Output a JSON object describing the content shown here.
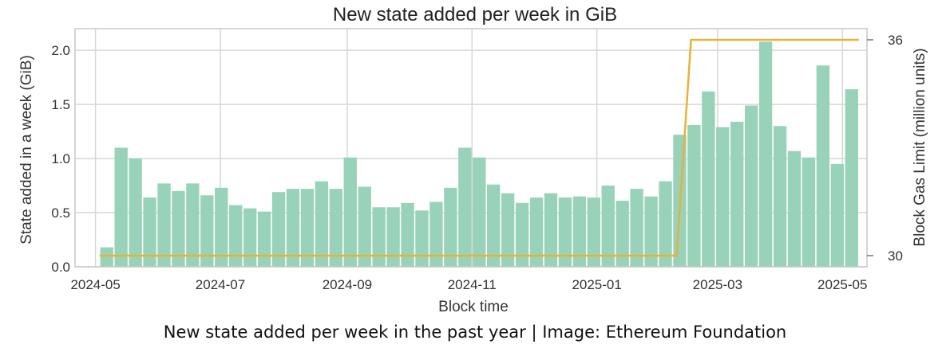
{
  "caption": "New state added per week in the past year | Image: Ethereum Foundation",
  "colors": {
    "bars": "#98d2b9",
    "gas_line": "#e8b23a",
    "grid": "#d7d7d7",
    "frame": "#c8c8c8"
  },
  "chart_data": {
    "type": "bar",
    "title": "New state added per week in GiB",
    "xlabel": "Block time",
    "ylabel": "State added in a week (GiB)",
    "y2label": "Block Gas Limit (million units)",
    "ylim": [
      0,
      2.2
    ],
    "yticks": [
      0.0,
      0.5,
      1.0,
      1.5,
      2.0
    ],
    "ytick_labels": [
      "0.0",
      "0.5",
      "1.0",
      "1.5",
      "2.0"
    ],
    "y2ticks": [
      30,
      36
    ],
    "y2tick_labels": [
      "30",
      "36"
    ],
    "xlim": [
      "2024-04-21",
      "2025-05-13"
    ],
    "xticks": [
      "2024-05-01",
      "2024-07-01",
      "2024-09-01",
      "2024-11-01",
      "2025-01-01",
      "2025-03-01",
      "2025-05-01"
    ],
    "xtick_labels": [
      "2024-05",
      "2024-07",
      "2024-09",
      "2024-11",
      "2025-01",
      "2025-03",
      "2025-05"
    ],
    "grid": true,
    "bar_series": {
      "name": "State added per week",
      "week_start": [
        "2024-05-03",
        "2024-05-10",
        "2024-05-17",
        "2024-05-24",
        "2024-05-31",
        "2024-06-07",
        "2024-06-14",
        "2024-06-21",
        "2024-06-28",
        "2024-07-05",
        "2024-07-12",
        "2024-07-19",
        "2024-07-26",
        "2024-08-02",
        "2024-08-09",
        "2024-08-16",
        "2024-08-23",
        "2024-08-30",
        "2024-09-06",
        "2024-09-13",
        "2024-09-20",
        "2024-09-27",
        "2024-10-04",
        "2024-10-11",
        "2024-10-18",
        "2024-10-25",
        "2024-11-01",
        "2024-11-08",
        "2024-11-15",
        "2024-11-22",
        "2024-11-29",
        "2024-12-06",
        "2024-12-13",
        "2024-12-20",
        "2024-12-27",
        "2025-01-03",
        "2025-01-10",
        "2025-01-17",
        "2025-01-24",
        "2025-01-31",
        "2025-02-07",
        "2025-02-14",
        "2025-02-21",
        "2025-02-28",
        "2025-03-07",
        "2025-03-14",
        "2025-03-21",
        "2025-03-28",
        "2025-04-04",
        "2025-04-11",
        "2025-04-18",
        "2025-04-25",
        "2025-05-02"
      ],
      "values": [
        0.18,
        1.1,
        1.0,
        0.64,
        0.77,
        0.7,
        0.77,
        0.66,
        0.73,
        0.57,
        0.54,
        0.51,
        0.69,
        0.72,
        0.72,
        0.79,
        0.72,
        1.01,
        0.74,
        0.55,
        0.55,
        0.59,
        0.52,
        0.6,
        0.73,
        1.1,
        1.01,
        0.76,
        0.68,
        0.59,
        0.64,
        0.68,
        0.64,
        0.65,
        0.64,
        0.75,
        0.61,
        0.72,
        0.65,
        0.79,
        1.22,
        1.31,
        1.62,
        1.29,
        1.34,
        1.49,
        2.08,
        1.3,
        1.07,
        1.01,
        1.86,
        0.95,
        1.64
      ]
    },
    "line_series": {
      "name": "Block Gas Limit",
      "x": [
        "2024-05-03",
        "2025-02-09",
        "2025-02-16",
        "2025-05-09"
      ],
      "values": [
        30,
        30,
        36,
        36
      ]
    }
  }
}
